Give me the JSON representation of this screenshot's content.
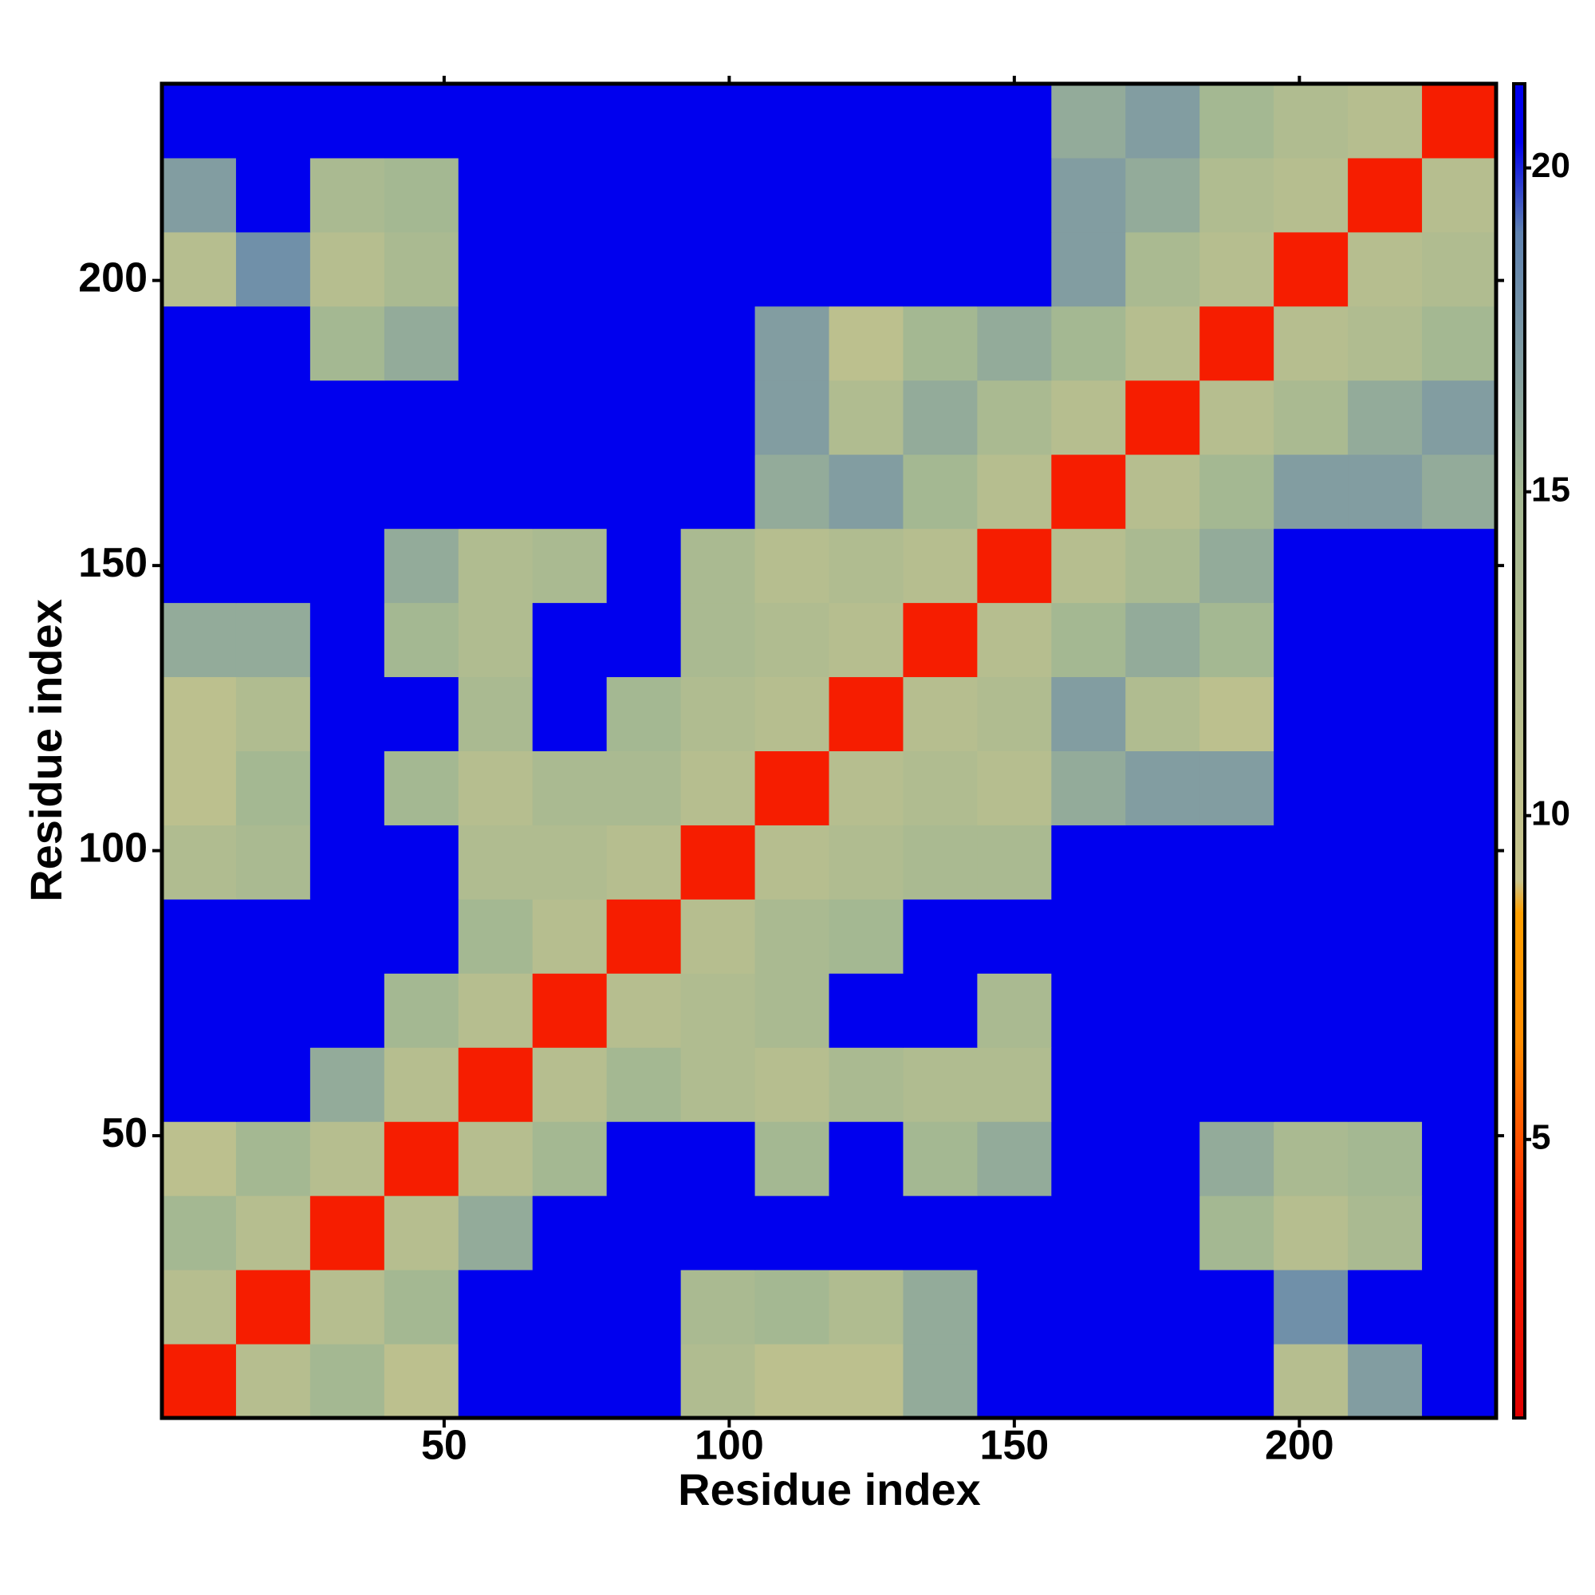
{
  "chart_data": {
    "type": "heatmap",
    "xlabel": "Residue index",
    "ylabel": "Residue index",
    "bins": [
      0.5,
      13.5,
      26.5,
      39.5,
      52.5,
      65.5,
      78.5,
      91.5,
      104.5,
      117.5,
      130.5,
      143.5,
      156.5,
      169.5,
      182.5,
      195.5,
      208.5,
      221.5,
      234.5
    ],
    "z": [
      [
        3,
        12,
        15,
        11,
        21,
        21,
        21,
        13,
        11,
        11,
        16,
        21,
        21,
        21,
        21,
        12,
        17,
        21
      ],
      [
        12,
        3,
        12,
        15,
        21,
        21,
        21,
        14,
        15,
        13,
        16,
        21,
        21,
        21,
        21,
        18,
        21,
        21
      ],
      [
        15,
        12,
        3,
        12,
        16,
        21,
        21,
        21,
        21,
        21,
        21,
        21,
        21,
        21,
        15,
        12,
        14,
        21
      ],
      [
        11,
        15,
        12,
        3,
        12,
        15,
        21,
        21,
        15,
        21,
        15,
        16,
        21,
        21,
        16,
        14,
        15,
        21
      ],
      [
        21,
        21,
        16,
        12,
        3,
        12,
        15,
        13,
        12,
        14,
        13,
        13,
        21,
        21,
        21,
        21,
        21,
        21
      ],
      [
        21,
        21,
        21,
        15,
        12,
        3,
        12,
        13,
        14,
        21,
        21,
        14,
        21,
        21,
        21,
        21,
        21,
        21
      ],
      [
        21,
        21,
        21,
        21,
        15,
        12,
        3,
        12,
        14,
        15,
        21,
        21,
        21,
        21,
        21,
        21,
        21,
        21
      ],
      [
        13,
        14,
        21,
        21,
        13,
        13,
        12,
        3,
        12,
        13,
        14,
        14,
        21,
        21,
        21,
        21,
        21,
        21
      ],
      [
        11,
        15,
        21,
        15,
        12,
        14,
        14,
        12,
        3,
        12,
        13,
        12,
        16,
        17,
        17,
        21,
        21,
        21
      ],
      [
        11,
        13,
        21,
        21,
        14,
        21,
        15,
        13,
        12,
        3,
        12,
        13,
        17,
        13,
        11,
        21,
        21,
        21
      ],
      [
        16,
        16,
        21,
        15,
        13,
        21,
        21,
        14,
        13,
        12,
        3,
        12,
        15,
        16,
        15,
        21,
        21,
        21
      ],
      [
        21,
        21,
        21,
        16,
        13,
        14,
        21,
        14,
        12,
        13,
        12,
        3,
        12,
        14,
        16,
        21,
        21,
        21
      ],
      [
        21,
        21,
        21,
        21,
        21,
        21,
        21,
        21,
        16,
        17,
        15,
        12,
        3,
        12,
        15,
        17,
        17,
        16
      ],
      [
        21,
        21,
        21,
        21,
        21,
        21,
        21,
        21,
        17,
        13,
        16,
        14,
        12,
        3,
        12,
        14,
        16,
        17
      ],
      [
        21,
        21,
        15,
        16,
        21,
        21,
        21,
        21,
        17,
        11,
        15,
        16,
        15,
        12,
        3,
        12,
        13,
        15
      ],
      [
        12,
        18,
        12,
        14,
        21,
        21,
        21,
        21,
        21,
        21,
        21,
        21,
        17,
        14,
        12,
        3,
        12,
        13
      ],
      [
        17,
        21,
        14,
        15,
        21,
        21,
        21,
        21,
        21,
        21,
        21,
        21,
        17,
        16,
        13,
        12,
        3,
        12
      ],
      [
        21,
        21,
        21,
        21,
        21,
        21,
        21,
        21,
        21,
        21,
        21,
        21,
        16,
        17,
        15,
        13,
        12,
        3
      ]
    ],
    "xlim": [
      0.5,
      234.5
    ],
    "ylim": [
      0.5,
      234.5
    ],
    "xticks": [
      50,
      100,
      150,
      200
    ],
    "yticks": [
      50,
      100,
      150,
      200
    ],
    "zlim": [
      0.7,
      21.3
    ],
    "zticks": [
      5,
      10,
      15,
      20
    ],
    "colorscale": [
      [
        0.7,
        "#e00000"
      ],
      [
        4,
        "#ff2a00"
      ],
      [
        6.5,
        "#ff8c00"
      ],
      [
        8.5,
        "#ffa000"
      ],
      [
        9,
        "#c8c48c"
      ],
      [
        15,
        "#a4b892"
      ],
      [
        19,
        "#5f82b0"
      ],
      [
        20.4,
        "#0000ee"
      ],
      [
        21.3,
        "#0000ee"
      ]
    ]
  }
}
